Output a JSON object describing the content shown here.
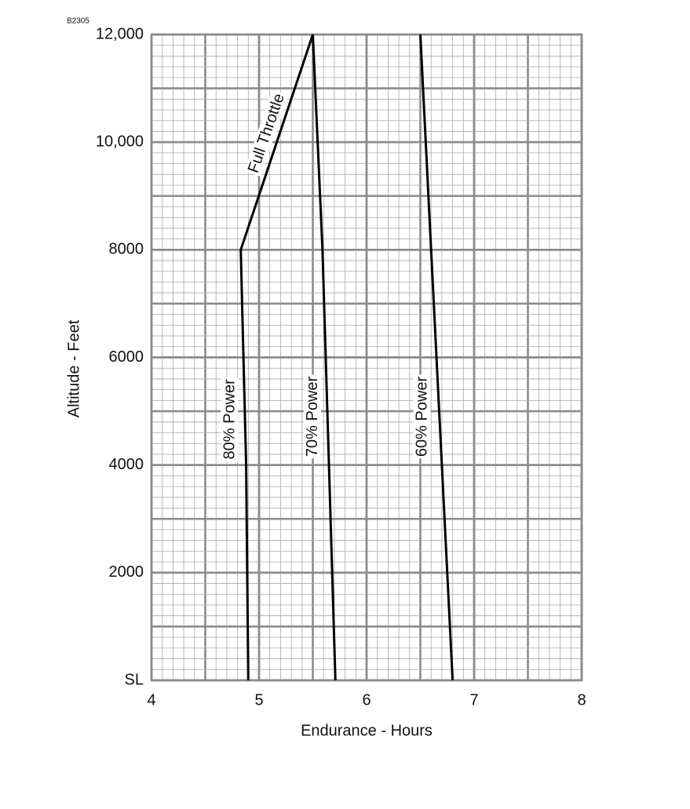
{
  "chart_data": {
    "type": "line",
    "figure_id": "B2305",
    "xlabel": "Endurance - Hours",
    "ylabel": "Altitude - Feet",
    "xlim": [
      4,
      8
    ],
    "xticks": [
      4,
      5,
      6,
      7,
      8
    ],
    "ylim": [
      0,
      12000
    ],
    "yticks": [
      {
        "value": 0,
        "label": "SL"
      },
      2000,
      4000,
      6000,
      8000,
      {
        "value": 10000,
        "label": "10,000"
      },
      {
        "value": 12000,
        "label": "12,000"
      }
    ],
    "grid": true,
    "series": [
      {
        "name": "80% Power",
        "color": "#000000",
        "x": [
          4.9,
          4.88,
          4.83,
          5.5
        ],
        "y": [
          0,
          4000,
          8000,
          12000
        ]
      },
      {
        "name": "70% Power",
        "color": "#000000",
        "x": [
          5.71,
          5.59,
          5.5
        ],
        "y": [
          0,
          8000,
          12000
        ]
      },
      {
        "name": "60% Power",
        "color": "#000000",
        "x": [
          6.8,
          6.5
        ],
        "y": [
          0,
          12000
        ]
      }
    ],
    "annotations": [
      {
        "text": "Full Throttle"
      }
    ]
  }
}
